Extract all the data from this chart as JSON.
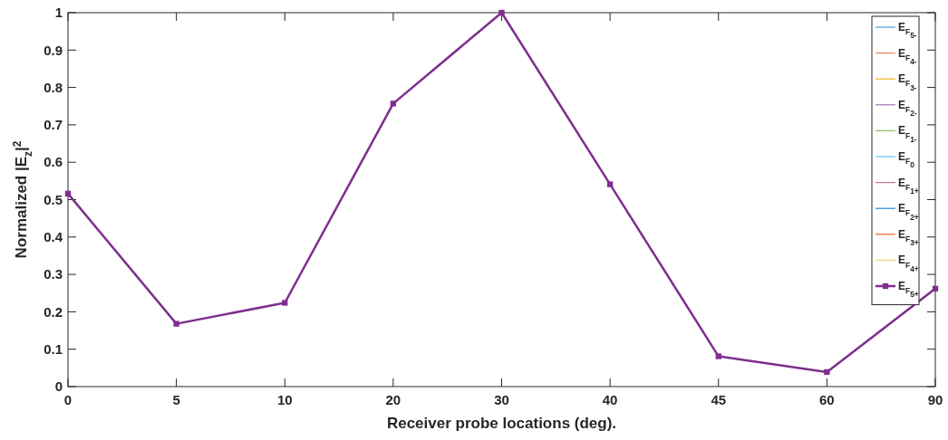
{
  "chart_data": {
    "type": "line",
    "xlabel": "Receiver probe locations (deg).",
    "ylabel": "Normalized |E$_{z}$|$^{2}$",
    "categories": [
      "0",
      "5",
      "10",
      "20",
      "30",
      "40",
      "45",
      "60",
      "90"
    ],
    "ylim": [
      0,
      1
    ],
    "yticks": [
      0,
      0.1,
      0.2,
      0.3,
      0.4,
      0.5,
      0.6,
      0.7,
      0.8,
      0.9,
      1
    ],
    "grid": false,
    "legend": "top right",
    "marker": "none",
    "line_style": "solid",
    "series": [
      {
        "name": "E$_{F}$$_{5-}$",
        "color": "#4d9dd5",
        "values": [
          null,
          null,
          null,
          null,
          null,
          null,
          null,
          null,
          null
        ]
      },
      {
        "name": "E$_{F}$$_{4-}$",
        "color": "#e8825a",
        "values": [
          null,
          null,
          null,
          null,
          null,
          null,
          null,
          null,
          null
        ]
      },
      {
        "name": "E$_{F}$$_{3-}$",
        "color": "#edb120",
        "values": [
          null,
          null,
          null,
          null,
          null,
          null,
          null,
          null,
          null
        ]
      },
      {
        "name": "E$_{F}$$_{2-}$",
        "color": "#a070b8",
        "values": [
          null,
          null,
          null,
          null,
          null,
          null,
          null,
          null,
          null
        ]
      },
      {
        "name": "E$_{F}$$_{1-}$",
        "color": "#8cb860",
        "values": [
          null,
          null,
          null,
          null,
          null,
          null,
          null,
          null,
          null
        ]
      },
      {
        "name": "E$_{F}$$_{0}$",
        "color": "#6cc4ee",
        "values": [
          null,
          null,
          null,
          null,
          null,
          null,
          null,
          null,
          null
        ]
      },
      {
        "name": "E$_{F}$$_{1+}$",
        "color": "#c8737e",
        "values": [
          null,
          null,
          null,
          null,
          null,
          null,
          null,
          null,
          null
        ]
      },
      {
        "name": "E$_{F}$$_{2+}$",
        "color": "#2a86cc",
        "values": [
          null,
          null,
          null,
          null,
          null,
          null,
          null,
          null,
          null
        ]
      },
      {
        "name": "E$_{F}$$_{3+}$",
        "color": "#e8642a",
        "values": [
          null,
          null,
          null,
          null,
          null,
          null,
          null,
          null,
          null
        ]
      },
      {
        "name": "E$_{F}$$_{4+}$",
        "color": "#f2d080",
        "values": [
          null,
          null,
          null,
          null,
          null,
          null,
          null,
          null,
          null
        ]
      },
      {
        "name": "E$_{F}$$_{5+}$",
        "color": "#7e2f8e",
        "marker": "square",
        "values": [
          0.516,
          0.168,
          0.224,
          0.757,
          1.0,
          0.541,
          0.081,
          0.039,
          0.262
        ]
      }
    ]
  }
}
